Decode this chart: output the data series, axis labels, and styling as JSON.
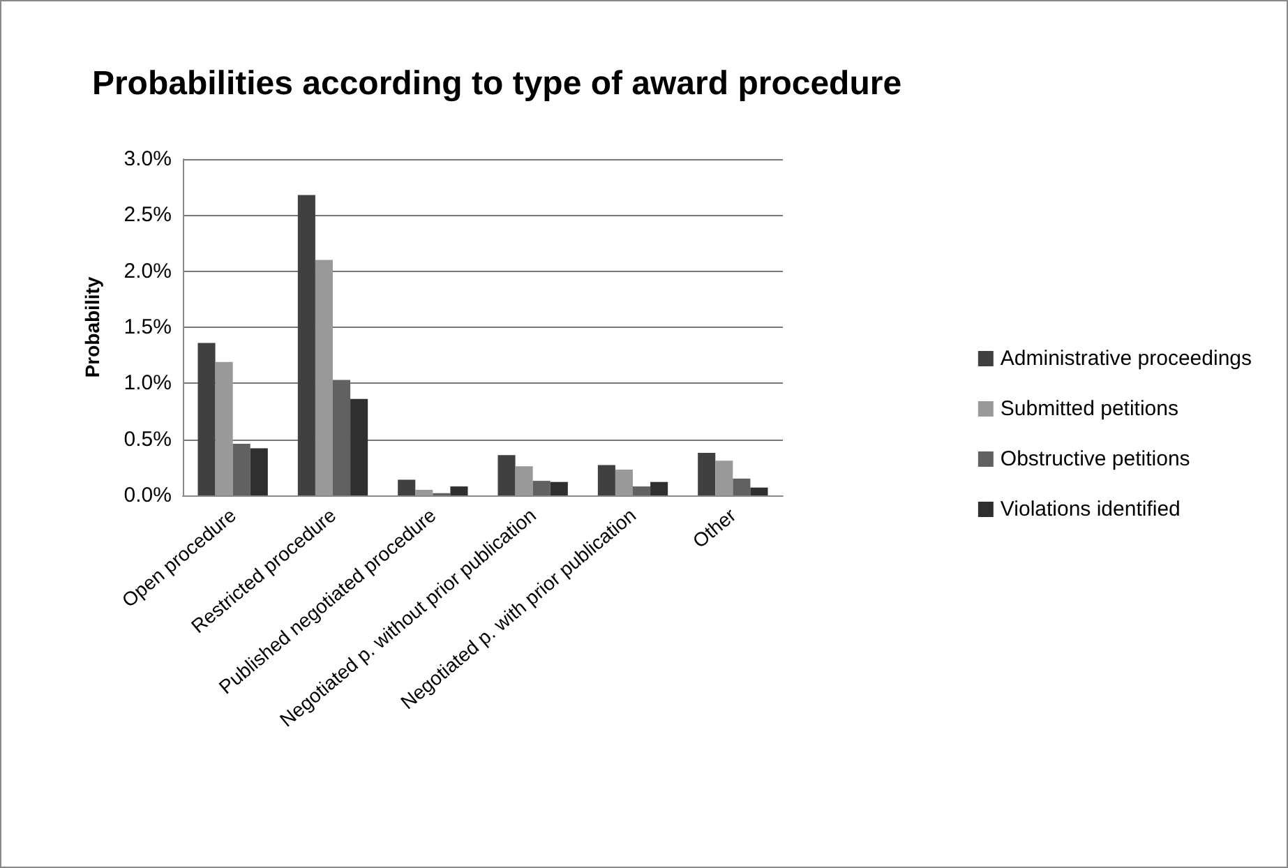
{
  "chart_data": {
    "type": "bar",
    "title": "Probabilities according to type of award procedure",
    "ylabel": "Probability",
    "categories": [
      "Open procedure",
      "Restricted procedure",
      "Published negotiated procedure",
      "Negotiated p. without prior publication",
      "Negotiated p. with prior publication",
      "Other"
    ],
    "series": [
      {
        "name": "Administrative proceedings",
        "color": "#404040",
        "values": [
          1.36,
          2.68,
          0.14,
          0.36,
          0.27,
          0.38
        ]
      },
      {
        "name": "Submitted petitions",
        "color": "#999999",
        "values": [
          1.19,
          2.1,
          0.05,
          0.26,
          0.23,
          0.31
        ]
      },
      {
        "name": "Obstructive petitions",
        "color": "#616161",
        "values": [
          0.46,
          1.03,
          0.02,
          0.13,
          0.08,
          0.15
        ]
      },
      {
        "name": "Violations identified",
        "color": "#2f2f2f",
        "values": [
          0.42,
          0.86,
          0.08,
          0.12,
          0.12,
          0.07
        ]
      }
    ],
    "ylim": [
      0,
      3
    ],
    "yticks": [
      {
        "value": 0,
        "label": "0.0%"
      },
      {
        "value": 0.5,
        "label": "0.5%"
      },
      {
        "value": 1,
        "label": "1.0%"
      },
      {
        "value": 1.5,
        "label": "1.5%"
      },
      {
        "value": 2,
        "label": "2.0%"
      },
      {
        "value": 2.5,
        "label": "2.5%"
      },
      {
        "value": 3,
        "label": "3.0%"
      }
    ],
    "grid": "y",
    "legend": "right"
  }
}
